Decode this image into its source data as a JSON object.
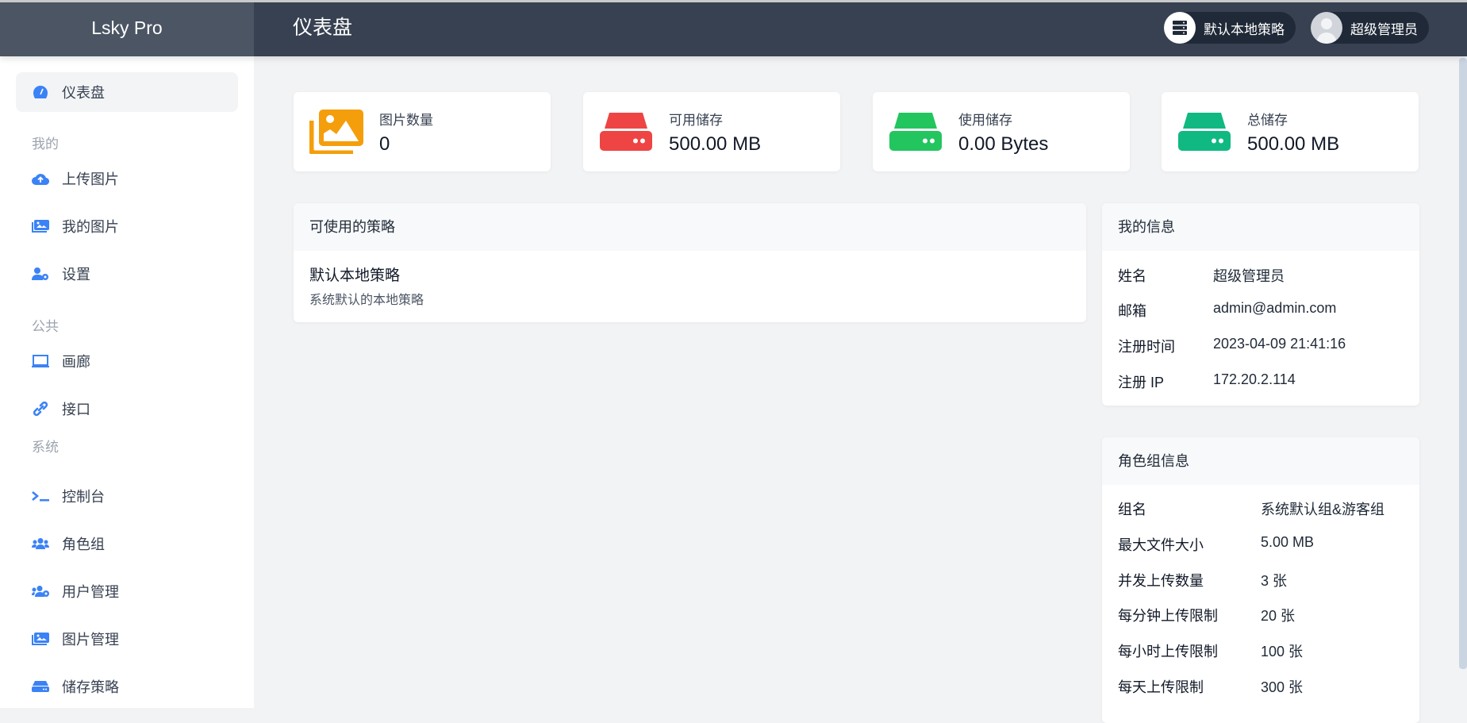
{
  "app": {
    "logo": "Lsky Pro",
    "title": "仪表盘"
  },
  "header": {
    "strategy": "默认本地策略",
    "user": "超级管理员"
  },
  "sidebar": {
    "dashboard": "仪表盘",
    "sections": [
      {
        "label": "我的",
        "items": [
          "上传图片",
          "我的图片",
          "设置"
        ]
      },
      {
        "label": "公共",
        "items": [
          "画廊",
          "接口"
        ]
      },
      {
        "label": "系统",
        "items": [
          "控制台",
          "角色组",
          "用户管理",
          "图片管理",
          "储存策略"
        ]
      }
    ]
  },
  "stats": [
    {
      "label": "图片数量",
      "value": "0",
      "color": "#f59e0b",
      "icon": "images-icon"
    },
    {
      "label": "可用储存",
      "value": "500.00 MB",
      "color": "#ef4444",
      "icon": "hdd-icon"
    },
    {
      "label": "使用储存",
      "value": "0.00 Bytes",
      "color": "#22c55e",
      "icon": "hdd-icon"
    },
    {
      "label": "总储存",
      "value": "500.00 MB",
      "color": "#10b981",
      "icon": "hdd-icon"
    }
  ],
  "strategies": {
    "title": "可使用的策略",
    "items": [
      {
        "name": "默认本地策略",
        "desc": "系统默认的本地策略"
      }
    ]
  },
  "my_info": {
    "title": "我的信息",
    "rows": [
      {
        "label": "姓名",
        "value": "超级管理员"
      },
      {
        "label": "邮箱",
        "value": "admin@admin.com"
      },
      {
        "label": "注册时间",
        "value": "2023-04-09 21:41:16"
      },
      {
        "label": "注册 IP",
        "value": "172.20.2.114"
      }
    ]
  },
  "group_info": {
    "title": "角色组信息",
    "rows": [
      {
        "label": "组名",
        "value": "系统默认组&游客组"
      },
      {
        "label": "最大文件大小",
        "value": "5.00 MB"
      },
      {
        "label": "并发上传数量",
        "value": "3 张"
      },
      {
        "label": "每分钟上传限制",
        "value": "20 张"
      },
      {
        "label": "每小时上传限制",
        "value": "100 张"
      },
      {
        "label": "每天上传限制",
        "value": "300 张"
      }
    ]
  },
  "colors": {
    "accent": "#3b82f6",
    "header": "#374151",
    "sidebar_logo": "#4b5563"
  }
}
